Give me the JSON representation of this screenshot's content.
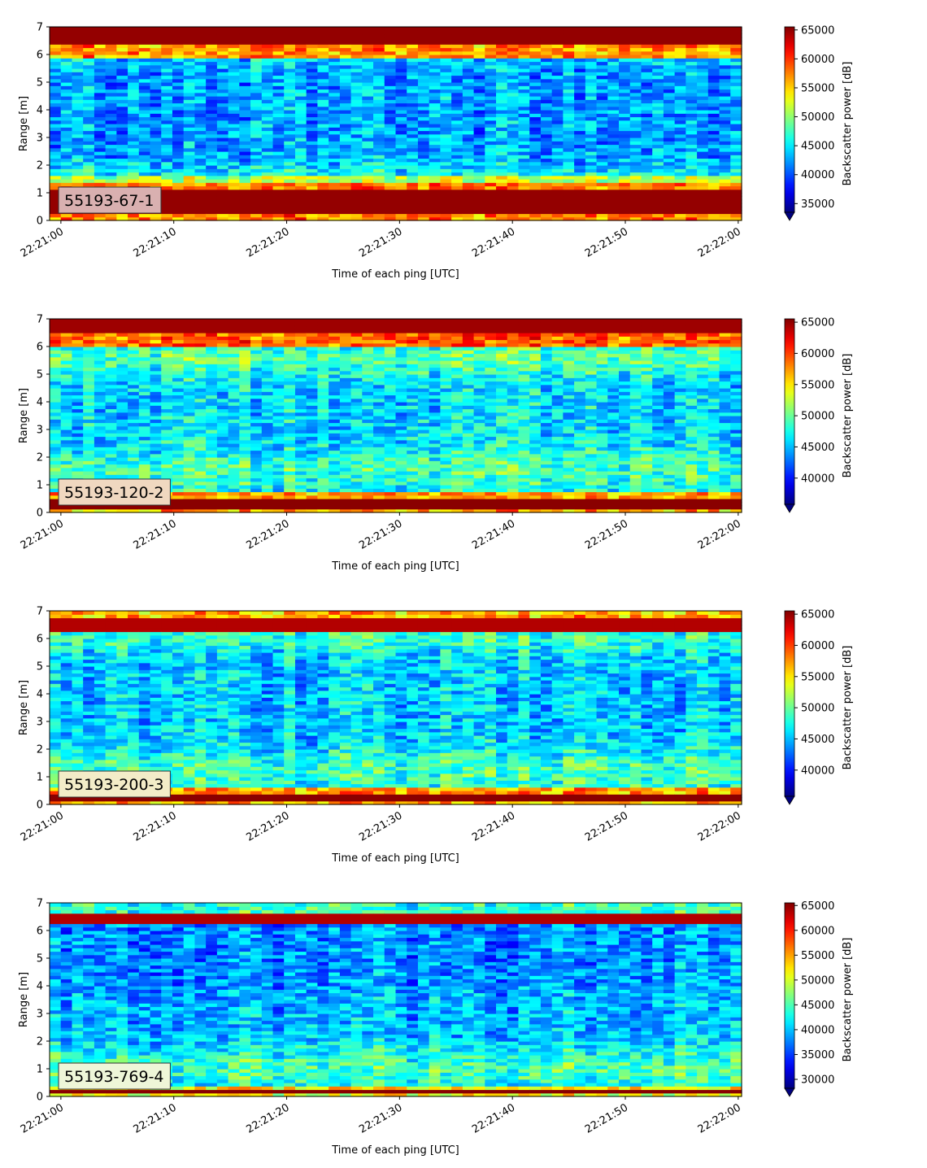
{
  "figure": {
    "panels": 4,
    "colormap": "jet"
  },
  "chart_data": [
    {
      "type": "heatmap",
      "panel_label": "55193-67-1",
      "label_box_color": "#d9b0b0",
      "xlabel": "Time of each ping [UTC]",
      "ylabel": "Range [m]",
      "xticks": [
        "22:21:00",
        "22:21:10",
        "22:21:20",
        "22:21:30",
        "22:21:40",
        "22:21:50",
        "22:22:00"
      ],
      "xlim_seconds_after_22_21_00": [
        -1,
        60.3
      ],
      "ylim": [
        0,
        7
      ],
      "yticks": [
        0,
        1,
        2,
        3,
        4,
        5,
        6,
        7
      ],
      "colorbar": {
        "label": "Backscatter power [dB]",
        "min": 33500,
        "max": 65535,
        "ticks": [
          35000,
          40000,
          45000,
          50000,
          55000,
          60000,
          65000
        ],
        "extend": "min"
      },
      "grid": false
    },
    {
      "type": "heatmap",
      "panel_label": "55193-120-2",
      "label_box_color": "#f0d8c0",
      "xlabel": "Time of each ping [UTC]",
      "ylabel": "Range [m]",
      "xticks": [
        "22:21:00",
        "22:21:10",
        "22:21:20",
        "22:21:30",
        "22:21:40",
        "22:21:50",
        "22:22:00"
      ],
      "xlim_seconds_after_22_21_00": [
        -1,
        60.3
      ],
      "ylim": [
        0,
        7
      ],
      "yticks": [
        0,
        1,
        2,
        3,
        4,
        5,
        6,
        7
      ],
      "colorbar": {
        "label": "Backscatter power [dB]",
        "min": 35800,
        "max": 65535,
        "ticks": [
          40000,
          45000,
          50000,
          55000,
          60000,
          65000
        ],
        "extend": "min"
      },
      "grid": false
    },
    {
      "type": "heatmap",
      "panel_label": "55193-200-3",
      "label_box_color": "#f3ecc8",
      "xlabel": "Time of each ping [UTC]",
      "ylabel": "Range [m]",
      "xticks": [
        "22:21:00",
        "22:21:10",
        "22:21:20",
        "22:21:30",
        "22:21:40",
        "22:21:50",
        "22:22:00"
      ],
      "xlim_seconds_after_22_21_00": [
        -1,
        60.3
      ],
      "ylim": [
        0,
        7
      ],
      "yticks": [
        0,
        1,
        2,
        3,
        4,
        5,
        6,
        7
      ],
      "colorbar": {
        "label": "Backscatter power [dB]",
        "min": 35800,
        "max": 65535,
        "ticks": [
          40000,
          45000,
          50000,
          55000,
          60000,
          65000
        ],
        "extend": "min"
      },
      "grid": false
    },
    {
      "type": "heatmap",
      "panel_label": "55193-769-4",
      "label_box_color": "#eef6d8",
      "xlabel": "Time of each ping [UTC]",
      "ylabel": "Range [m]",
      "xticks": [
        "22:21:00",
        "22:21:10",
        "22:21:20",
        "22:21:30",
        "22:21:40",
        "22:21:50",
        "22:22:00"
      ],
      "xlim_seconds_after_22_21_00": [
        -1,
        60.3
      ],
      "ylim": [
        0,
        7
      ],
      "yticks": [
        0,
        1,
        2,
        3,
        4,
        5,
        6,
        7
      ],
      "colorbar": {
        "label": "Backscatter power [dB]",
        "min": 28200,
        "max": 65535,
        "ticks": [
          30000,
          35000,
          40000,
          45000,
          50000,
          55000,
          60000,
          65000
        ],
        "extend": "min"
      },
      "grid": false
    }
  ]
}
